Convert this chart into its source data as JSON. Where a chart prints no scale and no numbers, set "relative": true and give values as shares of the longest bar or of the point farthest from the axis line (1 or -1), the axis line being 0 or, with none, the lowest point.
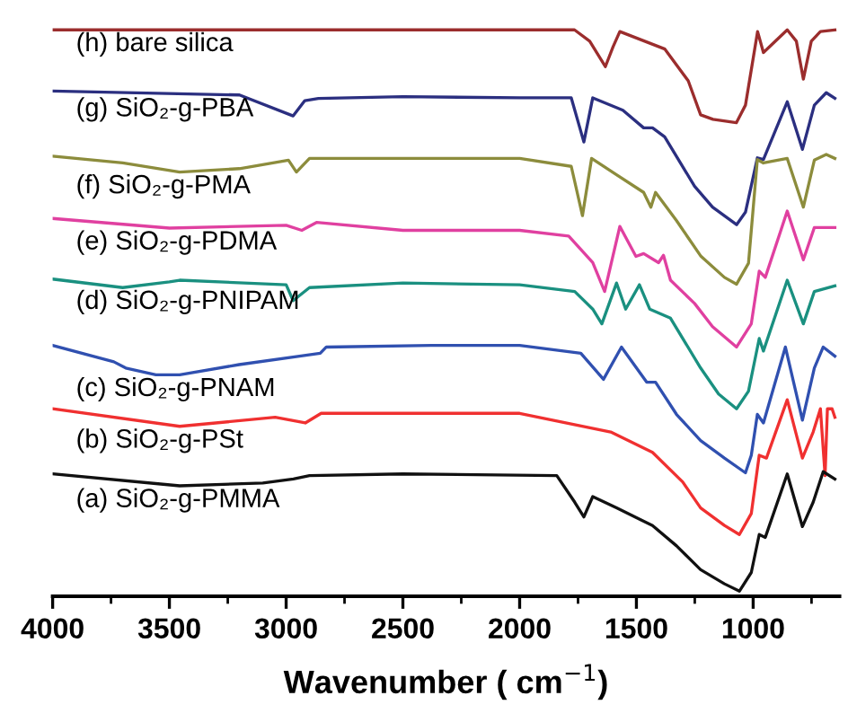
{
  "chart_data": {
    "type": "line",
    "relative": true,
    "xlabel": "Wavenumber ( cm$^{−1}$)",
    "xlim": [
      4000,
      630
    ],
    "xticks": [
      4000,
      {
        "value": 3750,
        "label": null
      },
      3500,
      {
        "value": 3250,
        "label": null
      },
      3000,
      {
        "value": 2750,
        "label": null
      },
      2500,
      {
        "value": 2250,
        "label": null
      },
      2000,
      {
        "value": 1750,
        "label": null
      },
      1500,
      {
        "value": 1250,
        "label": null
      },
      1000,
      {
        "value": 750,
        "label": null
      }
    ],
    "grid": false,
    "legend": false,
    "marker": "none",
    "line_style": "solid",
    "series": [
      {
        "name": "(h) bare silica",
        "color": "#9b2d2d",
        "x": [
          4000,
          3000,
          2000,
          1765,
          1700,
          1633,
          1600,
          1571,
          1378,
          1278,
          1225,
          1172,
          1072,
          1033,
          981,
          956,
          854,
          815,
          785,
          751,
          712,
          650
        ],
        "values": [
          1.0,
          1.0,
          1.0,
          1.0,
          0.98,
          0.935,
          0.97,
          0.997,
          0.966,
          0.91,
          0.85,
          0.842,
          0.836,
          0.867,
          0.997,
          0.96,
          1.0,
          0.98,
          0.913,
          0.98,
          0.997,
          1.0
        ]
      },
      {
        "name": "(g) SiO₂-g-PBA",
        "color": "#2b2f80",
        "x": [
          4000,
          3200,
          2970,
          2920,
          2862,
          2500,
          2000,
          1779,
          1725,
          1687,
          1558,
          1469,
          1431,
          1379,
          1251,
          1174,
          1071,
          1033,
          982,
          956,
          854,
          789,
          738,
          687,
          650
        ],
        "values": [
          0.892,
          0.885,
          0.848,
          0.875,
          0.879,
          0.882,
          0.88,
          0.88,
          0.802,
          0.88,
          0.858,
          0.827,
          0.827,
          0.811,
          0.724,
          0.687,
          0.656,
          0.678,
          0.774,
          0.771,
          0.873,
          0.789,
          0.867,
          0.889,
          0.879
        ]
      },
      {
        "name": "(f) SiO₂-g-PMA",
        "color": "#8c8c3c",
        "x": [
          4000,
          3700,
          3456,
          3200,
          2990,
          2956,
          2900,
          2500,
          2000,
          1779,
          1731,
          1692,
          1585,
          1469,
          1438,
          1418,
          1328,
          1225,
          1123,
          1071,
          1020,
          982,
          956,
          854,
          785,
          738,
          687,
          650
        ],
        "values": [
          0.777,
          0.765,
          0.749,
          0.755,
          0.77,
          0.749,
          0.773,
          0.773,
          0.773,
          0.759,
          0.672,
          0.773,
          0.744,
          0.713,
          0.687,
          0.713,
          0.663,
          0.601,
          0.563,
          0.551,
          0.588,
          0.771,
          0.765,
          0.773,
          0.687,
          0.77,
          0.78,
          0.773
        ]
      },
      {
        "name": "(e) SiO₂-g-PDMA",
        "color": "#e040a0",
        "x": [
          4000,
          3500,
          3000,
          2933,
          2870,
          2500,
          2000,
          1790,
          1687,
          1636,
          1571,
          1502,
          1469,
          1405,
          1384,
          1354,
          1251,
          1174,
          1071,
          1008,
          974,
          948,
          854,
          785,
          738,
          650
        ],
        "values": [
          0.667,
          0.65,
          0.655,
          0.646,
          0.66,
          0.646,
          0.646,
          0.636,
          0.589,
          0.538,
          0.653,
          0.6,
          0.605,
          0.589,
          0.602,
          0.558,
          0.517,
          0.476,
          0.44,
          0.481,
          0.574,
          0.563,
          0.68,
          0.594,
          0.651,
          0.651
        ]
      },
      {
        "name": "(d) SiO₂-g-PNIPAM",
        "color": "#1a9080",
        "x": [
          4000,
          3700,
          3500,
          3456,
          3000,
          2970,
          2900,
          2500,
          2000,
          1764,
          1687,
          1648,
          1585,
          1546,
          1487,
          1443,
          1354,
          1225,
          1148,
          1071,
          1020,
          974,
          956,
          854,
          785,
          738,
          650
        ],
        "values": [
          0.56,
          0.545,
          0.555,
          0.558,
          0.55,
          0.522,
          0.545,
          0.553,
          0.55,
          0.538,
          0.507,
          0.481,
          0.553,
          0.507,
          0.55,
          0.507,
          0.491,
          0.403,
          0.357,
          0.331,
          0.362,
          0.455,
          0.433,
          0.558,
          0.481,
          0.538,
          0.548
        ]
      },
      {
        "name": "(c) SiO₂-g-PNAM",
        "color": "#3050b0",
        "x": [
          4000,
          3738,
          3687,
          3558,
          3456,
          3201,
          2943,
          2854,
          2828,
          2379,
          2000,
          1738,
          1641,
          1564,
          1456,
          1418,
          1328,
          1225,
          1123,
          1033,
          1008,
          982,
          956,
          862,
          789,
          738,
          700,
          650
        ],
        "values": [
          0.443,
          0.414,
          0.403,
          0.391,
          0.391,
          0.409,
          0.424,
          0.429,
          0.44,
          0.443,
          0.443,
          0.429,
          0.383,
          0.44,
          0.378,
          0.378,
          0.321,
          0.275,
          0.244,
          0.218,
          0.249,
          0.321,
          0.306,
          0.44,
          0.311,
          0.403,
          0.44,
          0.424
        ]
      },
      {
        "name": "(b) SiO₂-g-PSt",
        "color": "#f03030",
        "x": [
          4000,
          3456,
          3047,
          2918,
          2850,
          2500,
          2000,
          1610,
          1431,
          1302,
          1225,
          1123,
          1059,
          1008,
          974,
          943,
          854,
          789,
          743,
          712,
          692,
          682,
          662,
          650
        ],
        "values": [
          0.331,
          0.3,
          0.316,
          0.306,
          0.323,
          0.323,
          0.323,
          0.29,
          0.254,
          0.202,
          0.156,
          0.125,
          0.109,
          0.146,
          0.249,
          0.244,
          0.347,
          0.244,
          0.29,
          0.331,
          0.213,
          0.331,
          0.331,
          0.316
        ]
      },
      {
        "name": "(a) SiO₂-g-PMMA",
        "color": "#111111",
        "x": [
          4000,
          3456,
          3100,
          2969,
          2900,
          2500,
          1841,
          1764,
          1725,
          1687,
          1585,
          1482,
          1431,
          1328,
          1225,
          1123,
          1059,
          1008,
          974,
          948,
          854,
          789,
          743,
          700,
          650
        ],
        "values": [
          0.216,
          0.195,
          0.2,
          0.207,
          0.213,
          0.216,
          0.213,
          0.166,
          0.14,
          0.176,
          0.156,
          0.135,
          0.125,
          0.089,
          0.047,
          0.022,
          0.009,
          0.042,
          0.109,
          0.104,
          0.216,
          0.123,
          0.166,
          0.22,
          0.207
        ]
      }
    ]
  }
}
